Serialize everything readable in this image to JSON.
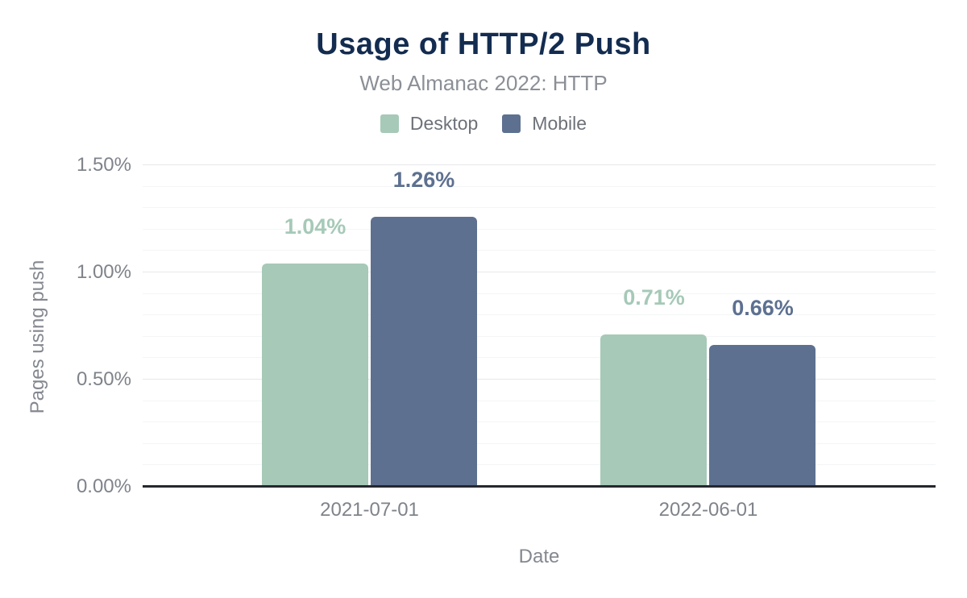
{
  "chart_data": {
    "type": "bar",
    "title": "Usage of HTTP/2 Push",
    "subtitle": "Web Almanac 2022: HTTP",
    "xlabel": "Date",
    "ylabel": "Pages using push",
    "categories": [
      "2021-07-01",
      "2022-06-01"
    ],
    "series": [
      {
        "name": "Desktop",
        "color": "#a6c9b8",
        "values": [
          1.04,
          0.71
        ],
        "value_labels": [
          "1.04%",
          "0.71%"
        ]
      },
      {
        "name": "Mobile",
        "color": "#5d7090",
        "values": [
          1.26,
          0.66
        ],
        "value_labels": [
          "1.26%",
          "0.66%"
        ]
      }
    ],
    "ylim": [
      0,
      1.5
    ],
    "yticks": [
      {
        "value": 0.0,
        "label": "0.00%"
      },
      {
        "value": 0.5,
        "label": "0.50%"
      },
      {
        "value": 1.0,
        "label": "1.00%"
      },
      {
        "value": 1.5,
        "label": "1.50%"
      }
    ],
    "minor_tick_step": 0.1,
    "grid": "horizontal-major-and-minor",
    "legend_position": "top"
  },
  "colors": {
    "title": "#132c50",
    "subtitle": "#8b8f96",
    "axis_text": "#7f838a",
    "legend_text": "#6d7178",
    "axis_line": "#25282d",
    "grid_major": "#e7e8ea",
    "grid_minor": "#f4f5f6",
    "desktop_series": "#a6c9b8",
    "mobile_series": "#5d7090"
  }
}
